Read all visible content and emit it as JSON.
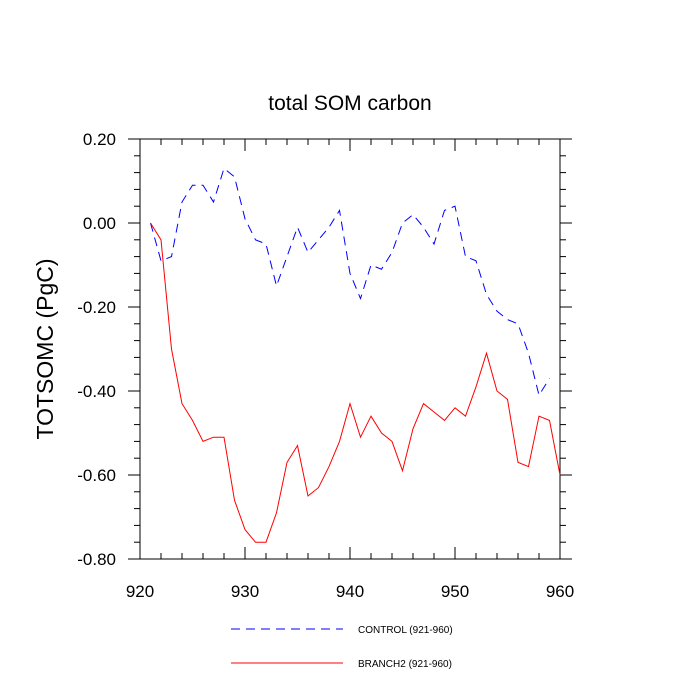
{
  "chart_data": {
    "type": "line",
    "title": "total SOM carbon",
    "xlabel": "",
    "ylabel": "TOTSOMC  (PgC)",
    "xlim": [
      920,
      960
    ],
    "ylim": [
      -0.8,
      0.2
    ],
    "xticks": [
      920,
      930,
      940,
      950,
      960
    ],
    "xtick_labels": [
      "920",
      "930",
      "940",
      "950",
      "960"
    ],
    "yticks": [
      0.2,
      0.0,
      -0.2,
      -0.4,
      -0.6,
      -0.8
    ],
    "ytick_labels": [
      "0.20",
      "0.00",
      "-0.20",
      "-0.40",
      "-0.60",
      "-0.80"
    ],
    "legend_position": "bottom",
    "series": [
      {
        "name": "CONTROL (921-960)",
        "color": "#0000ff",
        "dash": "dashed",
        "x": [
          921,
          922,
          923,
          924,
          925,
          926,
          927,
          928,
          929,
          930,
          931,
          932,
          933,
          934,
          935,
          936,
          937,
          938,
          939,
          940,
          941,
          942,
          943,
          944,
          945,
          946,
          947,
          948,
          949,
          950,
          951,
          952,
          953,
          954,
          955,
          956,
          957,
          958,
          959
        ],
        "values": [
          0.0,
          -0.09,
          -0.08,
          0.05,
          0.09,
          0.09,
          0.05,
          0.13,
          0.11,
          0.01,
          -0.04,
          -0.05,
          -0.15,
          -0.08,
          -0.01,
          -0.07,
          -0.04,
          -0.01,
          0.03,
          -0.12,
          -0.18,
          -0.1,
          -0.11,
          -0.07,
          0.0,
          0.02,
          -0.01,
          -0.05,
          0.03,
          0.04,
          -0.08,
          -0.09,
          -0.17,
          -0.21,
          -0.23,
          -0.24,
          -0.31,
          -0.41,
          -0.37
        ]
      },
      {
        "name": "BRANCH2 (921-960)",
        "color": "#ff0000",
        "dash": "solid",
        "x": [
          921,
          922,
          923,
          924,
          925,
          926,
          927,
          928,
          929,
          930,
          931,
          932,
          933,
          934,
          935,
          936,
          937,
          938,
          939,
          940,
          941,
          942,
          943,
          944,
          945,
          946,
          947,
          948,
          949,
          950,
          951,
          952,
          953,
          954,
          955,
          956,
          957,
          958,
          959,
          960
        ],
        "values": [
          0.0,
          -0.04,
          -0.3,
          -0.43,
          -0.47,
          -0.52,
          -0.51,
          -0.51,
          -0.66,
          -0.73,
          -0.76,
          -0.76,
          -0.69,
          -0.57,
          -0.53,
          -0.65,
          -0.63,
          -0.58,
          -0.52,
          -0.43,
          -0.51,
          -0.46,
          -0.5,
          -0.52,
          -0.59,
          -0.49,
          -0.43,
          -0.45,
          -0.47,
          -0.44,
          -0.46,
          -0.39,
          -0.31,
          -0.4,
          -0.42,
          -0.57,
          -0.58,
          -0.46,
          -0.47,
          -0.6
        ]
      }
    ]
  }
}
